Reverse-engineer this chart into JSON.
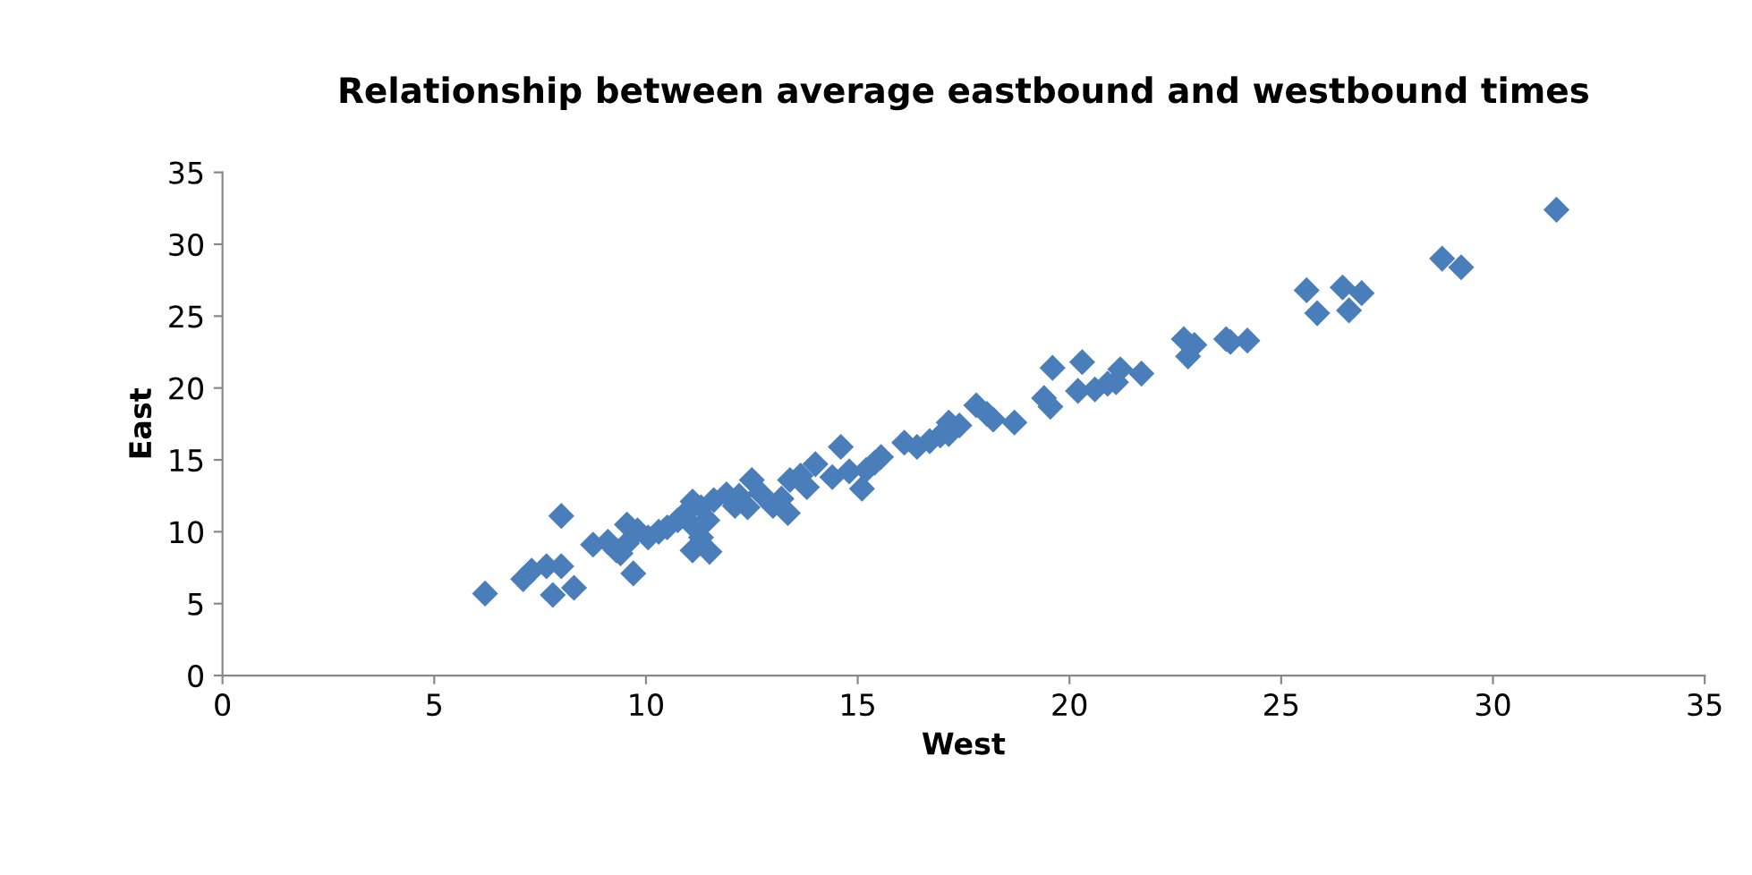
{
  "chart_data": {
    "type": "scatter",
    "title": "Relationship between average eastbound and westbound times",
    "xlabel": "West",
    "ylabel": "East",
    "x": [
      6.2,
      7.1,
      7.3,
      7.65,
      7.8,
      8.0,
      8.0,
      8.3,
      8.75,
      9.1,
      9.3,
      9.4,
      9.55,
      9.7,
      9.55,
      9.8,
      10.05,
      10.3,
      10.5,
      10.75,
      10.9,
      11.1,
      11.1,
      11.15,
      11.3,
      11.3,
      11.45,
      11.5,
      11.6,
      11.9,
      12.1,
      12.2,
      12.4,
      12.5,
      12.7,
      13.0,
      13.2,
      13.35,
      13.4,
      13.65,
      13.8,
      14.0,
      14.4,
      14.6,
      14.8,
      15.1,
      15.2,
      15.4,
      15.55,
      16.1,
      16.4,
      16.7,
      16.95,
      17.15,
      17.15,
      17.4,
      17.8,
      18.05,
      18.2,
      18.7,
      19.4,
      19.55,
      19.6,
      20.2,
      20.3,
      20.6,
      20.9,
      21.1,
      21.2,
      21.7,
      22.7,
      22.8,
      22.95,
      23.7,
      23.8,
      24.2,
      25.6,
      25.85,
      26.45,
      26.6,
      26.9,
      28.8,
      29.25,
      31.5
    ],
    "values": [
      5.7,
      6.7,
      7.3,
      7.6,
      5.6,
      7.6,
      11.1,
      6.1,
      9.1,
      9.3,
      8.7,
      8.5,
      9.2,
      7.1,
      10.5,
      10.1,
      9.6,
      10.0,
      10.3,
      10.8,
      11.2,
      12.1,
      8.7,
      10.3,
      11.7,
      9.6,
      10.8,
      8.6,
      12.2,
      12.6,
      11.8,
      12.5,
      11.7,
      13.6,
      12.7,
      11.8,
      12.3,
      11.3,
      13.6,
      13.9,
      13.1,
      14.7,
      13.8,
      15.9,
      14.2,
      13.0,
      14.3,
      14.8,
      15.2,
      16.2,
      15.9,
      16.3,
      16.7,
      17.6,
      16.8,
      17.4,
      18.8,
      18.2,
      17.8,
      17.6,
      19.3,
      18.7,
      21.4,
      19.8,
      21.8,
      19.9,
      20.3,
      20.4,
      21.3,
      21.0,
      23.4,
      22.2,
      23.0,
      23.4,
      23.2,
      23.3,
      26.8,
      25.2,
      27.0,
      25.4,
      26.6,
      29.0,
      28.4,
      32.4
    ],
    "color": "#4a7ebb",
    "marker": "diamond",
    "xlim": [
      0,
      35
    ],
    "ylim": [
      0,
      35
    ],
    "xticks": [
      0,
      5,
      10,
      15,
      20,
      25,
      30,
      35
    ],
    "yticks": [
      0,
      5,
      10,
      15,
      20,
      25,
      30,
      35
    ],
    "grid": false,
    "legend": false
  }
}
